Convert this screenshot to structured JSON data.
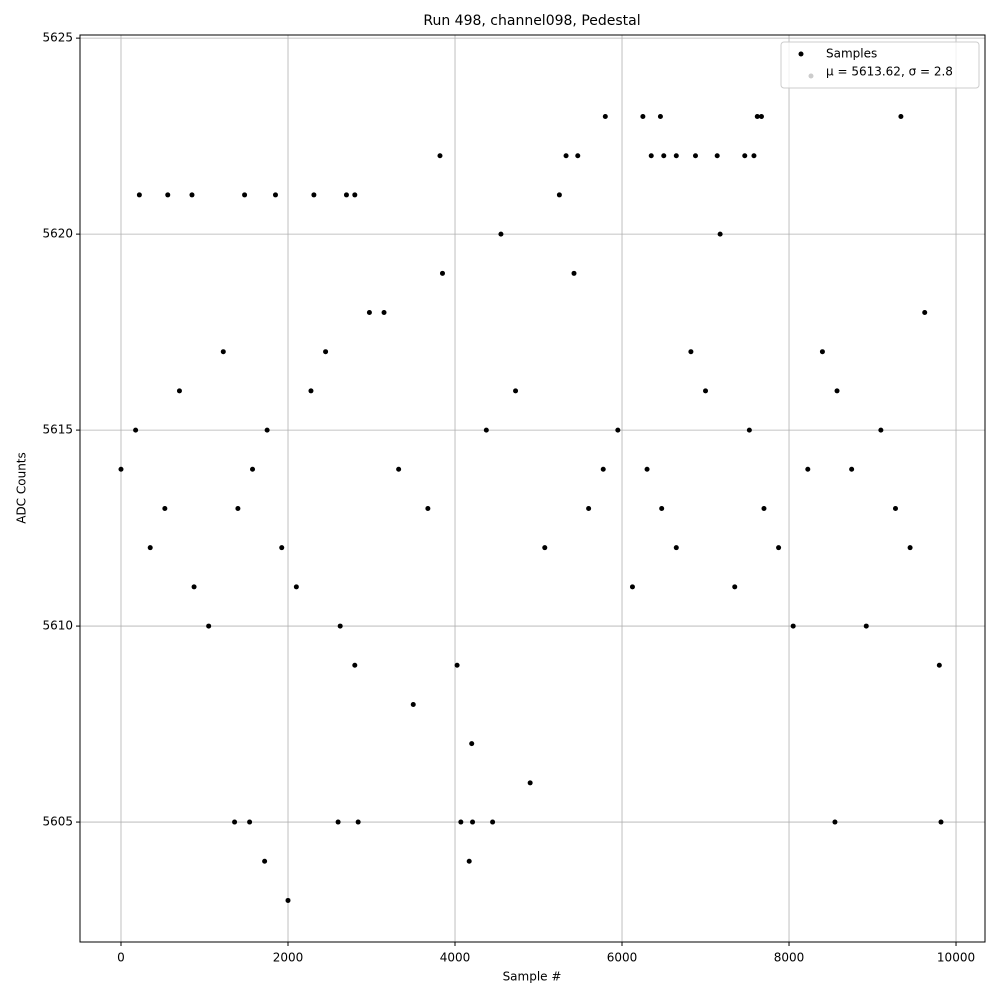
{
  "chart_data": {
    "type": "scatter",
    "title": "Run 498, channel098, Pedestal",
    "x_label": "Sample #",
    "y_label": "ADC Counts",
    "xlim": [
      -491,
      10347
    ],
    "ylim": [
      5601.94,
      5625.08
    ],
    "xticks": [
      0,
      2000,
      4000,
      6000,
      8000,
      10000
    ],
    "yticks": [
      5605,
      5610,
      5615,
      5620,
      5625
    ],
    "grid": true,
    "legend_position": "upper right",
    "legend_entries": [
      {
        "label": "Samples",
        "color": "#000000"
      },
      {
        "label": "μ = 5613.62, σ = 2.8",
        "color": "#cccccc"
      }
    ],
    "series": [
      {
        "name": "Samples",
        "color": "#000000",
        "x": [
          2000,
          1720,
          4170,
          5800,
          6250,
          6460,
          7620,
          7670,
          9340,
          3820,
          5330,
          5470,
          6350,
          6500,
          6650,
          6880,
          7140,
          7470,
          7580,
          1360,
          1540,
          2600,
          2840,
          4070,
          4210,
          4450,
          8550,
          9820,
          220,
          560,
          850,
          1480,
          1850,
          2310,
          2700,
          2800,
          0,
          350,
          700,
          1050,
          1400,
          1750,
          2100,
          2450,
          2800,
          3150,
          3500,
          3850,
          4200,
          4550,
          4900,
          5250,
          5600,
          5950,
          6300,
          6650,
          7000,
          7350,
          7700,
          8050,
          8400,
          8750,
          9100,
          9450,
          9800,
          175,
          525,
          875,
          1225,
          1575,
          1925,
          2275,
          2625,
          2975,
          3325,
          3675,
          4025,
          4375,
          4725,
          5075,
          5425,
          5775,
          6125,
          6475,
          6825,
          7175,
          7525,
          7875,
          8225,
          8575,
          8925,
          9275,
          9625
        ],
        "values": [
          5603,
          5604,
          5604,
          5623,
          5623,
          5623,
          5623,
          5623,
          5623,
          5622,
          5622,
          5622,
          5622,
          5622,
          5622,
          5622,
          5622,
          5622,
          5622,
          5605,
          5605,
          5605,
          5605,
          5605,
          5605,
          5605,
          5605,
          5605,
          5621,
          5621,
          5621,
          5621,
          5621,
          5621,
          5621,
          5621,
          5614,
          5612,
          5616,
          5610,
          5613,
          5615,
          5611,
          5617,
          5609,
          5618,
          5608,
          5619,
          5607,
          5620,
          5606,
          5621,
          5613,
          5615,
          5614,
          5612,
          5616,
          5611,
          5613,
          5610,
          5617,
          5614,
          5615,
          5612,
          5609,
          5615,
          5613,
          5611,
          5617,
          5614,
          5612,
          5616,
          5610,
          5618,
          5614,
          5613,
          5609,
          5615,
          5616,
          5612,
          5619,
          5614,
          5611,
          5613,
          5617,
          5620,
          5615,
          5612,
          5614,
          5616,
          5610,
          5613,
          5618
        ]
      }
    ]
  }
}
